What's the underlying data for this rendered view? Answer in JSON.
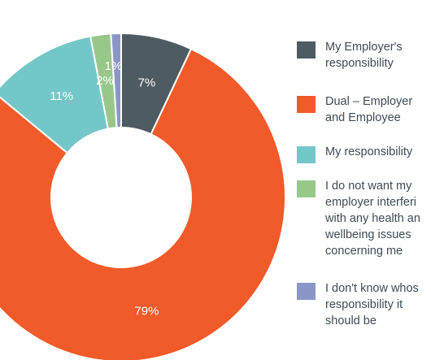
{
  "chart_data": {
    "type": "pie",
    "donut": true,
    "slices": [
      {
        "label": "My Employer's\nresponsibility",
        "value": 7,
        "value_label": "7%",
        "color": "#4e5b63"
      },
      {
        "label": "Dual – Employer\nand Employee",
        "value": 79,
        "value_label": "79%",
        "color": "#f15a29"
      },
      {
        "label": "My responsibility",
        "value": 11,
        "value_label": "11%",
        "color": "#74c7c9"
      },
      {
        "label": "I do not want my\nemployer interferi\nwith any health an\nwellbeing issues\nconcerning me",
        "value": 2,
        "value_label": "2%",
        "color": "#98c78a"
      },
      {
        "label": "I don't know whos\nresponsibility it\nshould be",
        "value": 1,
        "value_label": "1%",
        "color": "#8a97c6"
      }
    ],
    "legend_position": "right"
  }
}
